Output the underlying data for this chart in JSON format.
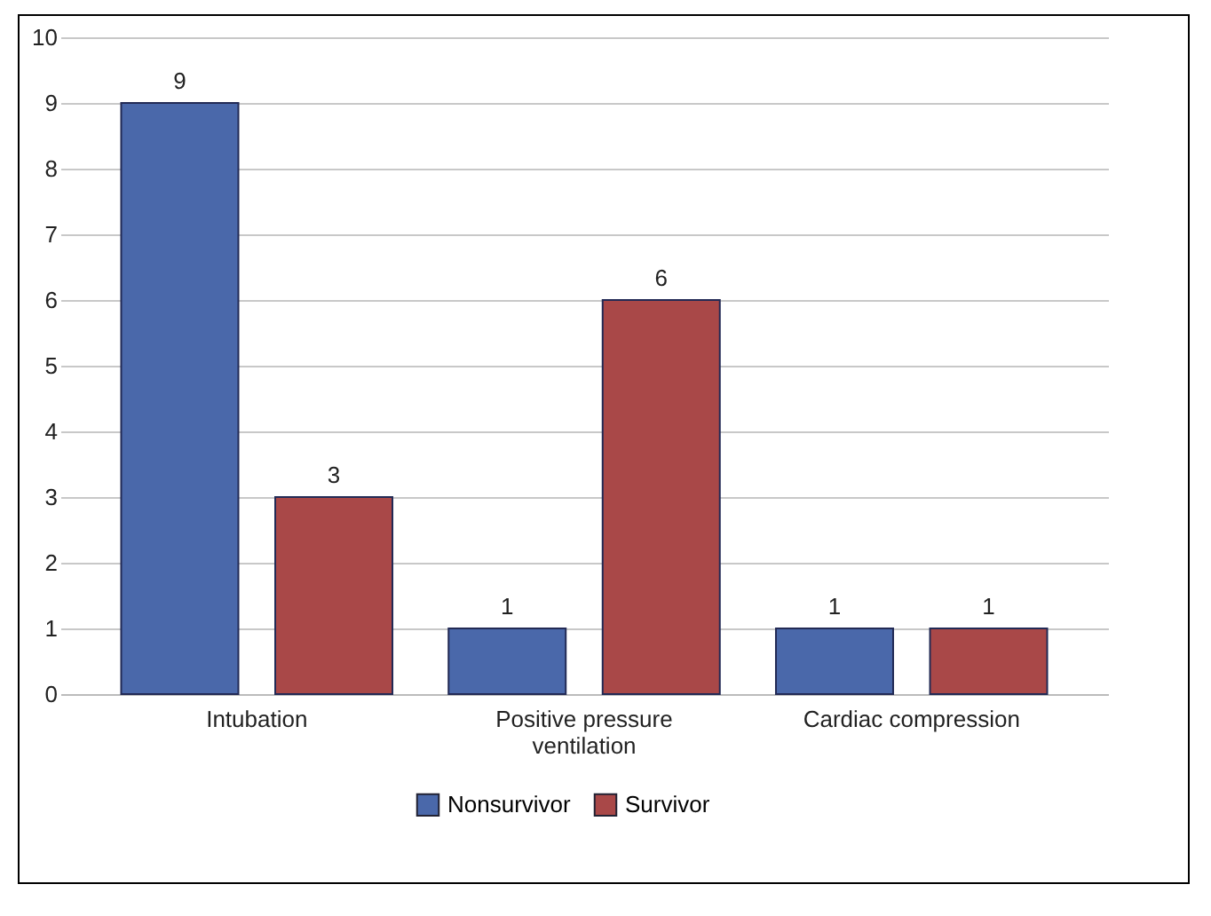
{
  "chart_data": {
    "type": "bar",
    "categories": [
      "Intubation",
      "Positive pressure ventilation",
      "Cardiac compression"
    ],
    "series": [
      {
        "name": "Nonsurvivor",
        "color": "#4a68aa",
        "values": [
          9,
          1,
          1
        ]
      },
      {
        "name": "Survivor",
        "color": "#a94848",
        "values": [
          3,
          6,
          1
        ]
      }
    ],
    "ylim": [
      0,
      10
    ],
    "yticks": [
      0,
      1,
      2,
      3,
      4,
      5,
      6,
      7,
      8,
      9,
      10
    ],
    "grid": "y",
    "legend": "bottom",
    "data_labels": true
  }
}
